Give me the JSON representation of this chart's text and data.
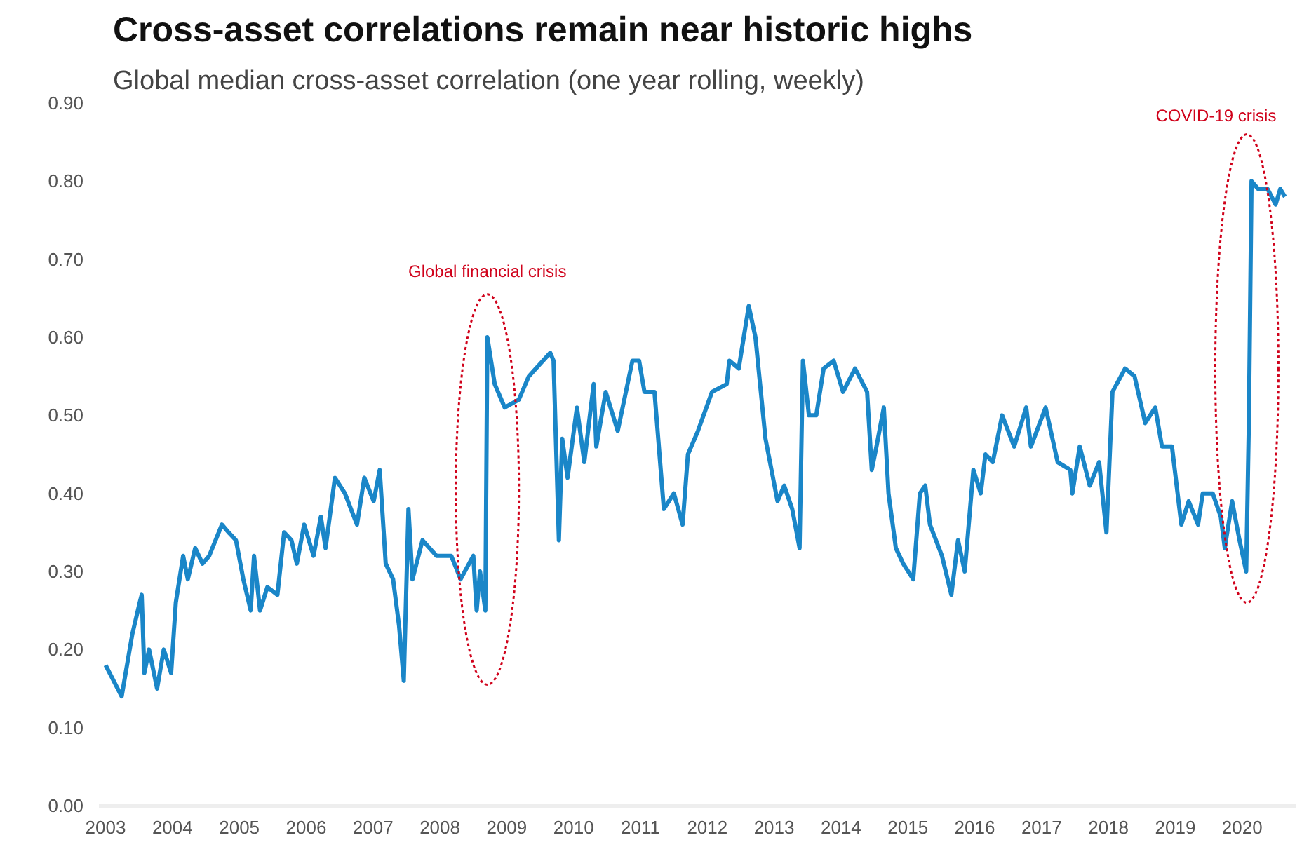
{
  "chart_data": {
    "type": "line",
    "title": "Cross-asset correlations remain near historic highs",
    "subtitle": "Global median cross-asset correlation (one year rolling, weekly)",
    "x": [
      2003.0,
      2003.24,
      2003.4,
      2003.51,
      2003.54,
      2003.58,
      2003.65,
      2003.77,
      2003.87,
      2003.98,
      2004.05,
      2004.16,
      2004.23,
      2004.34,
      2004.45,
      2004.55,
      2004.74,
      2004.84,
      2004.95,
      2005.06,
      2005.17,
      2005.22,
      2005.31,
      2005.42,
      2005.57,
      2005.67,
      2005.78,
      2005.86,
      2005.97,
      2006.11,
      2006.22,
      2006.29,
      2006.43,
      2006.58,
      2006.76,
      2006.87,
      2007.01,
      2007.1,
      2007.19,
      2007.3,
      2007.39,
      2007.46,
      2007.53,
      2007.59,
      2007.74,
      2007.95,
      2008.17,
      2008.31,
      2008.5,
      2008.55,
      2008.6,
      2008.68,
      2008.71,
      2008.82,
      2008.97,
      2009.18,
      2009.33,
      2009.65,
      2009.7,
      2009.78,
      2009.83,
      2009.91,
      2010.05,
      2010.16,
      2010.3,
      2010.34,
      2010.48,
      2010.66,
      2010.88,
      2010.98,
      2011.06,
      2011.21,
      2011.35,
      2011.5,
      2011.63,
      2011.71,
      2011.86,
      2012.07,
      2012.29,
      2012.33,
      2012.47,
      2012.62,
      2012.72,
      2012.87,
      2013.05,
      2013.15,
      2013.27,
      2013.38,
      2013.43,
      2013.52,
      2013.63,
      2013.74,
      2013.89,
      2014.03,
      2014.21,
      2014.39,
      2014.46,
      2014.53,
      2014.64,
      2014.71,
      2014.82,
      2014.93,
      2015.08,
      2015.18,
      2015.26,
      2015.33,
      2015.51,
      2015.65,
      2015.75,
      2015.85,
      2015.98,
      2016.09,
      2016.16,
      2016.27,
      2016.41,
      2016.59,
      2016.77,
      2016.84,
      2017.06,
      2017.24,
      2017.43,
      2017.46,
      2017.57,
      2017.72,
      2017.86,
      2017.97,
      2018.06,
      2018.25,
      2018.39,
      2018.55,
      2018.7,
      2018.8,
      2018.95,
      2019.09,
      2019.2,
      2019.34,
      2019.41,
      2019.56,
      2019.68,
      2019.74,
      2019.85,
      2019.96,
      2020.06,
      2020.1,
      2020.14,
      2020.24,
      2020.38,
      2020.5,
      2020.57,
      2020.64
    ],
    "series": [
      {
        "color": "#1a86c8",
        "values": [
          0.18,
          0.14,
          0.22,
          0.26,
          0.27,
          0.17,
          0.2,
          0.15,
          0.2,
          0.17,
          0.26,
          0.32,
          0.29,
          0.33,
          0.31,
          0.32,
          0.36,
          0.35,
          0.34,
          0.29,
          0.25,
          0.32,
          0.25,
          0.28,
          0.27,
          0.35,
          0.34,
          0.31,
          0.36,
          0.32,
          0.37,
          0.33,
          0.42,
          0.4,
          0.36,
          0.42,
          0.39,
          0.43,
          0.31,
          0.29,
          0.23,
          0.16,
          0.38,
          0.29,
          0.34,
          0.32,
          0.32,
          0.29,
          0.32,
          0.25,
          0.3,
          0.25,
          0.6,
          0.54,
          0.51,
          0.52,
          0.55,
          0.58,
          0.57,
          0.34,
          0.47,
          0.42,
          0.51,
          0.44,
          0.54,
          0.46,
          0.53,
          0.48,
          0.57,
          0.57,
          0.53,
          0.53,
          0.38,
          0.4,
          0.36,
          0.45,
          0.48,
          0.53,
          0.54,
          0.57,
          0.56,
          0.64,
          0.6,
          0.47,
          0.39,
          0.41,
          0.38,
          0.33,
          0.57,
          0.5,
          0.5,
          0.56,
          0.57,
          0.53,
          0.56,
          0.53,
          0.43,
          0.46,
          0.51,
          0.4,
          0.33,
          0.31,
          0.29,
          0.4,
          0.41,
          0.36,
          0.32,
          0.27,
          0.34,
          0.3,
          0.43,
          0.4,
          0.45,
          0.44,
          0.5,
          0.46,
          0.51,
          0.46,
          0.51,
          0.44,
          0.43,
          0.4,
          0.46,
          0.41,
          0.44,
          0.35,
          0.53,
          0.56,
          0.55,
          0.49,
          0.51,
          0.46,
          0.46,
          0.36,
          0.39,
          0.36,
          0.4,
          0.4,
          0.37,
          0.33,
          0.39,
          0.34,
          0.3,
          0.49,
          0.8,
          0.79,
          0.79,
          0.77,
          0.79,
          0.78
        ]
      }
    ],
    "xlim": [
      2002.9,
      2020.8
    ],
    "xticks": [
      2003,
      2004,
      2005,
      2006,
      2007,
      2008,
      2009,
      2010,
      2011,
      2012,
      2013,
      2014,
      2015,
      2016,
      2017,
      2018,
      2019,
      2020
    ],
    "ylim": [
      0,
      0.9
    ],
    "yticks": [
      {
        "value": 0,
        "label": "0.00"
      },
      {
        "value": 0.1,
        "label": "0.10"
      },
      {
        "value": 0.2,
        "label": "0.20"
      },
      {
        "value": 0.3,
        "label": "0.30"
      },
      {
        "value": 0.4,
        "label": "0.40"
      },
      {
        "value": 0.5,
        "label": "0.50"
      },
      {
        "value": 0.6,
        "label": "0.60"
      },
      {
        "value": 0.7,
        "label": "0.70"
      },
      {
        "value": 0.8,
        "label": "0.80"
      },
      {
        "value": 0.9,
        "label": "0.90"
      }
    ],
    "annotations": [
      "Global financial crisis",
      "COVID-19 crisis"
    ],
    "line_style": "solid"
  }
}
